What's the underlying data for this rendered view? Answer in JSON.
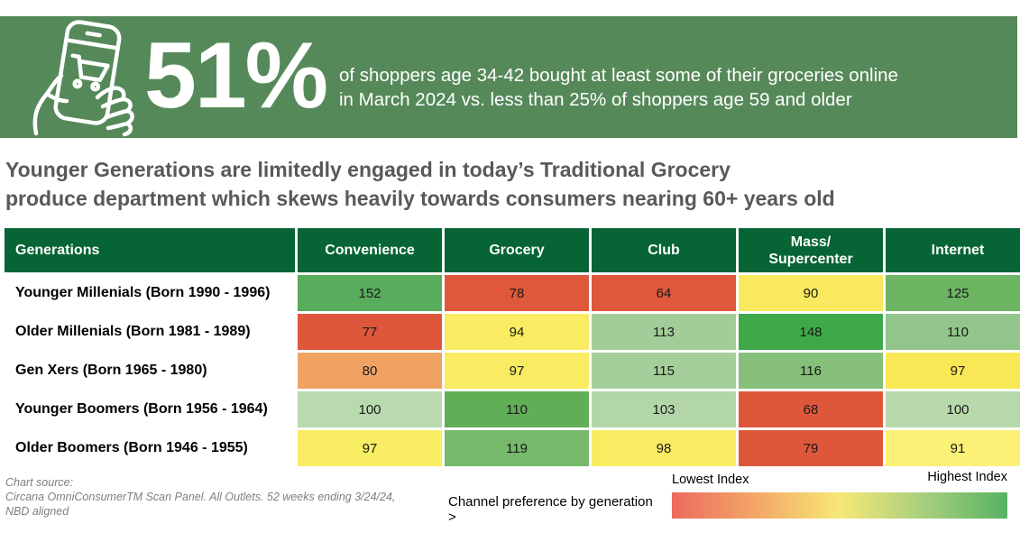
{
  "banner": {
    "stat": "51%",
    "description": "of shoppers age 34-42 bought at least some of their groceries online\nin March 2024 vs. less than 25% of shoppers age 59 and older",
    "bg_color": "#56895a",
    "icon": "hand-holding-phone-with-shopping-cart"
  },
  "headline": "Younger Generations are limitedly engaged in today’s Traditional Grocery\nproduce department which skews heavily towards consumers nearing 60+ years old",
  "table": {
    "header_bg": "#076434",
    "columns": [
      "Generations",
      "Convenience",
      "Grocery",
      "Club",
      "Mass/\nSupercenter",
      "Internet"
    ],
    "rows": [
      {
        "label": "Younger Millenials (Born 1990 - 1996)",
        "cells": [
          {
            "value": "152",
            "color": "#58ac5c"
          },
          {
            "value": "78",
            "color": "#df583b"
          },
          {
            "value": "64",
            "color": "#df583b"
          },
          {
            "value": "90",
            "color": "#f9e95e"
          },
          {
            "value": "125",
            "color": "#6db463"
          }
        ]
      },
      {
        "label": "Older Millenials (Born 1981 - 1989)",
        "cells": [
          {
            "value": "77",
            "color": "#df573a"
          },
          {
            "value": "94",
            "color": "#f9ec62"
          },
          {
            "value": "113",
            "color": "#a2cd98"
          },
          {
            "value": "148",
            "color": "#3fa94a"
          },
          {
            "value": "110",
            "color": "#92c58b"
          }
        ]
      },
      {
        "label": "Gen Xers (Born 1965 - 1980)",
        "cells": [
          {
            "value": "80",
            "color": "#f0a263"
          },
          {
            "value": "97",
            "color": "#f9ec62"
          },
          {
            "value": "115",
            "color": "#a5cf9a"
          },
          {
            "value": "116",
            "color": "#86c07a"
          },
          {
            "value": "97",
            "color": "#f9e855"
          }
        ]
      },
      {
        "label": "Younger Boomers (Born 1956 - 1964)",
        "cells": [
          {
            "value": "100",
            "color": "#b9daae"
          },
          {
            "value": "110",
            "color": "#60ae55"
          },
          {
            "value": "103",
            "color": "#b3d6a8"
          },
          {
            "value": "68",
            "color": "#df573a"
          },
          {
            "value": "100",
            "color": "#b8d9ac"
          }
        ]
      },
      {
        "label": "Older Boomers (Born 1946 - 1955)",
        "cells": [
          {
            "value": "97",
            "color": "#f9ed64"
          },
          {
            "value": "119",
            "color": "#76b96a"
          },
          {
            "value": "98",
            "color": "#f9ec62"
          },
          {
            "value": "79",
            "color": "#df573a"
          },
          {
            "value": "91",
            "color": "#fbf177"
          }
        ]
      }
    ]
  },
  "footer": {
    "source": "Chart source:\nCircana OmniConsumerTM Scan Panel. All Outlets. 52 weeks ending 3/24/24,\nNBD aligned",
    "channel_label": "Channel preference by generation >"
  },
  "legend": {
    "low_label": "Lowest Index",
    "high_label": "Highest Index",
    "gradient_stops": [
      "#ed6a60",
      "#f2a767",
      "#f6e876",
      "#a8cf7e",
      "#57b263"
    ]
  },
  "chart_data": {
    "type": "heatmap",
    "title": "Channel preference by generation",
    "subtitle_stat": "51% of shoppers age 34-42 bought at least some of their groceries online in March 2024 vs. less than 25% of shoppers age 59 and older",
    "rows": [
      "Younger Millenials (Born 1990 - 1996)",
      "Older Millenials (Born 1981 - 1989)",
      "Gen Xers (Born 1965 - 1980)",
      "Younger Boomers (Born 1956 - 1964)",
      "Older Boomers (Born 1946 - 1955)"
    ],
    "columns": [
      "Convenience",
      "Grocery",
      "Club",
      "Mass/Supercenter",
      "Internet"
    ],
    "values": [
      [
        152,
        78,
        64,
        90,
        125
      ],
      [
        77,
        94,
        113,
        148,
        110
      ],
      [
        80,
        97,
        115,
        116,
        97
      ],
      [
        100,
        110,
        103,
        68,
        100
      ],
      [
        97,
        119,
        98,
        79,
        91
      ]
    ],
    "scale": {
      "low_label": "Lowest Index",
      "high_label": "Highest Index",
      "low_color": "#df573a",
      "high_color": "#3fa94a"
    },
    "legend_position": "bottom-right"
  }
}
